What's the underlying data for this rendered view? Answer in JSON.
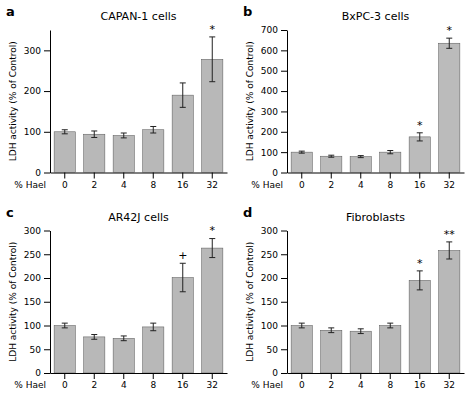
{
  "chart_data": [
    {
      "type": "bar",
      "panel_label": "a",
      "title": "CAPAN-1 cells",
      "categories": [
        "0",
        "2",
        "4",
        "8",
        "16",
        "32"
      ],
      "values": [
        100,
        94,
        91,
        105,
        190,
        278
      ],
      "errors": [
        5,
        8,
        6,
        8,
        30,
        55
      ],
      "color": "#b8b8b8",
      "ylim": [
        0,
        350
      ],
      "yticks": [
        0,
        100,
        200,
        300
      ],
      "xlabel": "% Hael",
      "ylabel": "LDH activity (% of Control)",
      "annotations": [
        {
          "category": "32",
          "text": "*"
        }
      ],
      "grid": false
    },
    {
      "type": "bar",
      "panel_label": "b",
      "title": "BxPC-3 cells",
      "categories": [
        "0",
        "2",
        "4",
        "8",
        "16",
        "32"
      ],
      "values": [
        100,
        80,
        78,
        100,
        175,
        635
      ],
      "errors": [
        5,
        5,
        5,
        8,
        20,
        25
      ],
      "color": "#bbbbbb",
      "ylim": [
        0,
        700
      ],
      "yticks": [
        0,
        100,
        200,
        300,
        400,
        500,
        600,
        700
      ],
      "xlabel": "% Hael",
      "ylabel": "LDH activity (% of Control)",
      "annotations": [
        {
          "category": "16",
          "text": "*"
        },
        {
          "category": "32",
          "text": "*"
        }
      ],
      "grid": false
    },
    {
      "type": "bar",
      "panel_label": "c",
      "title": "AR42J cells",
      "categories": [
        "0",
        "2",
        "4",
        "8",
        "16",
        "32"
      ],
      "values": [
        100,
        76,
        73,
        97,
        201,
        263
      ],
      "errors": [
        5,
        5,
        5,
        8,
        30,
        20
      ],
      "color": "#b8b8b8",
      "ylim": [
        0,
        300
      ],
      "yticks": [
        0,
        50,
        100,
        150,
        200,
        250,
        300
      ],
      "xlabel": "% Hael",
      "ylabel": "LDH activity (% of Control)",
      "annotations": [
        {
          "category": "16",
          "text": "+"
        },
        {
          "category": "32",
          "text": "*"
        }
      ],
      "grid": false
    },
    {
      "type": "bar",
      "panel_label": "d",
      "title": "Fibroblasts",
      "categories": [
        "0",
        "2",
        "4",
        "8",
        "16",
        "32"
      ],
      "values": [
        100,
        90,
        88,
        100,
        195,
        258
      ],
      "errors": [
        5,
        5,
        5,
        5,
        20,
        18
      ],
      "color": "#b8b8b8",
      "ylim": [
        0,
        300
      ],
      "yticks": [
        0,
        50,
        100,
        150,
        200,
        250,
        300
      ],
      "xlabel": "% Hael",
      "ylabel": "LDH activity (% of Control)",
      "annotations": [
        {
          "category": "16",
          "text": "*"
        },
        {
          "category": "32",
          "text": "**"
        }
      ],
      "grid": false
    }
  ]
}
